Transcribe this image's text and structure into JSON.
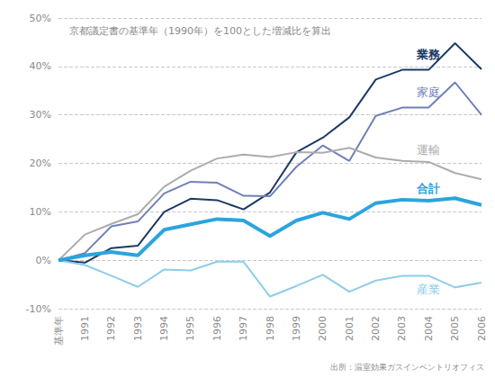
{
  "chart_data": {
    "type": "line",
    "title": "京都議定書の基準年（1990年）を100とした増減比を算出",
    "source": "出所：温室効果ガスインベントリオフィス",
    "categories": [
      "基準年",
      "1991",
      "1992",
      "1993",
      "1994",
      "1995",
      "1996",
      "1997",
      "1998",
      "1999",
      "2000",
      "2001",
      "2002",
      "2003",
      "2004",
      "2005",
      "2006"
    ],
    "series": [
      {
        "name": "業務",
        "color": "#1b3a66",
        "values": [
          0,
          -0.5,
          2.5,
          3,
          10,
          12.7,
          12.4,
          10.5,
          14,
          22.3,
          25.3,
          29.5,
          37.3,
          39.3,
          39.3,
          44.8,
          39.4
        ]
      },
      {
        "name": "家庭",
        "color": "#6f80b8",
        "values": [
          0,
          1.5,
          7,
          8,
          13.8,
          16.2,
          16,
          13.3,
          13.2,
          19.3,
          23.7,
          20.5,
          29.8,
          31.5,
          31.5,
          36.7,
          30
        ]
      },
      {
        "name": "運輸",
        "color": "#acacac",
        "values": [
          0,
          5.3,
          7.5,
          9.5,
          15.2,
          18.5,
          21,
          21.8,
          21.3,
          22.3,
          22.2,
          23.2,
          21.2,
          20.5,
          20.3,
          18,
          16.7
        ]
      },
      {
        "name": "合計",
        "color": "#2ca4dd",
        "values": [
          0,
          1,
          1.7,
          1,
          6.3,
          7.4,
          8.5,
          8.2,
          5,
          8.2,
          9.8,
          8.5,
          11.8,
          12.5,
          12.3,
          12.8,
          11.4
        ]
      },
      {
        "name": "産業",
        "color": "#8fcdea",
        "values": [
          0,
          -1,
          -3.2,
          -5.5,
          -1.9,
          -2.1,
          -0.3,
          -0.3,
          -7.5,
          -5.3,
          -3,
          -6.5,
          -4.2,
          -3.2,
          -3.2,
          -5.6,
          -4.6
        ]
      }
    ],
    "ylim": [
      -10,
      50
    ],
    "yticks": [
      {
        "value": -10,
        "label": "-10%"
      },
      {
        "value": 0,
        "label": "0%"
      },
      {
        "value": 10,
        "label": "10%"
      },
      {
        "value": 20,
        "label": "20%"
      },
      {
        "value": 30,
        "label": "30%"
      },
      {
        "value": 40,
        "label": "40%"
      },
      {
        "value": 50,
        "label": "50%"
      }
    ],
    "grid": true
  }
}
